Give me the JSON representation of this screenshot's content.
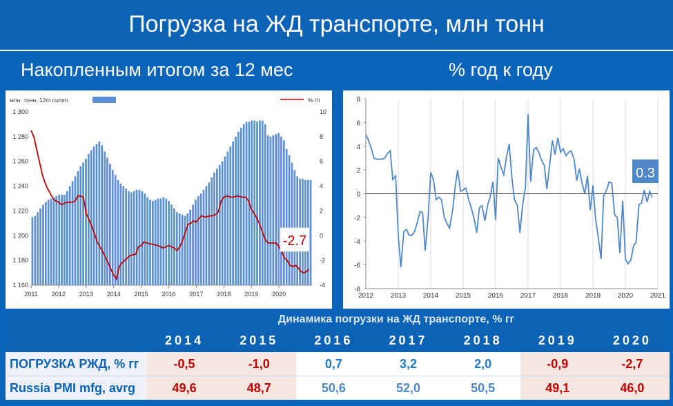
{
  "page": {
    "title": "Погрузка на ЖД транспорте, млн тонн",
    "subtitle_left": "Накопленным итогом за 12 мес",
    "subtitle_right": "% год к году"
  },
  "chart_data": [
    {
      "type": "bar",
      "legend_left": "млн. тонн, 12m cumm",
      "legend_right": "% г/г",
      "bar_color": "#5b8fd6",
      "line_color": "#c00000",
      "x_ticks": [
        "2011",
        "2012",
        "2013",
        "2014",
        "2015",
        "2016",
        "2017",
        "2018",
        "2019",
        "2020"
      ],
      "y_left_ticks": [
        "1 160",
        "1 180",
        "1 200",
        "1 220",
        "1 240",
        "1 260",
        "1 280",
        "1 300"
      ],
      "y_right_ticks": [
        "-4",
        "-2",
        "0",
        "2",
        "4",
        "6",
        "8",
        "10"
      ],
      "ylim_left": [
        1160,
        1300
      ],
      "ylim_right": [
        -4,
        10
      ],
      "annotation": "-2.7",
      "bars_values": [
        1215,
        1216,
        1219,
        1222,
        1225,
        1227,
        1229,
        1230,
        1231,
        1232,
        1233,
        1233,
        1233,
        1236,
        1240,
        1244,
        1248,
        1252,
        1256,
        1259,
        1262,
        1266,
        1269,
        1272,
        1274,
        1276,
        1273,
        1268,
        1263,
        1258,
        1253,
        1249,
        1245,
        1242,
        1240,
        1238,
        1236,
        1235,
        1236,
        1237,
        1237,
        1236,
        1234,
        1231,
        1229,
        1228,
        1229,
        1230,
        1230,
        1231,
        1230,
        1228,
        1225,
        1222,
        1219,
        1218,
        1217,
        1216,
        1218,
        1221,
        1225,
        1229,
        1232,
        1234,
        1237,
        1240,
        1243,
        1247,
        1251,
        1254,
        1257,
        1260,
        1264,
        1268,
        1272,
        1276,
        1280,
        1284,
        1287,
        1290,
        1292,
        1292,
        1293,
        1293,
        1292,
        1293,
        1293,
        1290,
        1281,
        1280,
        1281,
        1282,
        1283,
        1280,
        1277,
        1270,
        1265,
        1259,
        1253,
        1248,
        1246,
        1246,
        1245,
        1245,
        1245
      ],
      "line_points": [
        [
          2011.0,
          8.5
        ],
        [
          2011.1,
          8.0
        ],
        [
          2011.2,
          7.0
        ],
        [
          2011.3,
          6.0
        ],
        [
          2011.4,
          5.0
        ],
        [
          2011.5,
          4.3
        ],
        [
          2011.6,
          3.8
        ],
        [
          2011.7,
          3.4
        ],
        [
          2011.8,
          3.0
        ],
        [
          2011.9,
          2.8
        ],
        [
          2012.0,
          2.7
        ],
        [
          2012.1,
          2.5
        ],
        [
          2012.2,
          2.6
        ],
        [
          2012.3,
          2.7
        ],
        [
          2012.5,
          2.7
        ],
        [
          2012.6,
          2.8
        ],
        [
          2012.7,
          3.2
        ],
        [
          2012.8,
          3.2
        ],
        [
          2012.9,
          3.1
        ],
        [
          2013.0,
          1.8
        ],
        [
          2013.2,
          0.8
        ],
        [
          2013.4,
          -0.5
        ],
        [
          2013.6,
          -1.3
        ],
        [
          2013.8,
          -2.2
        ],
        [
          2014.0,
          -3.2
        ],
        [
          2014.1,
          -3.5
        ],
        [
          2014.2,
          -2.5
        ],
        [
          2014.3,
          -2.2
        ],
        [
          2014.4,
          -2.0
        ],
        [
          2014.6,
          -1.6
        ],
        [
          2014.8,
          -1.5
        ],
        [
          2014.9,
          -0.9
        ],
        [
          2015.0,
          -0.8
        ],
        [
          2015.1,
          -0.5
        ],
        [
          2015.2,
          -0.6
        ],
        [
          2015.4,
          -0.7
        ],
        [
          2015.6,
          -0.8
        ],
        [
          2015.8,
          -1.0
        ],
        [
          2015.9,
          -0.9
        ],
        [
          2016.0,
          -0.8
        ],
        [
          2016.1,
          -0.9
        ],
        [
          2016.2,
          -1.0
        ],
        [
          2016.3,
          -1.2
        ],
        [
          2016.4,
          -0.9
        ],
        [
          2016.5,
          -0.4
        ],
        [
          2016.6,
          0.3
        ],
        [
          2016.7,
          0.9
        ],
        [
          2016.8,
          1.0
        ],
        [
          2016.9,
          1.2
        ],
        [
          2017.0,
          1.1
        ],
        [
          2017.1,
          1.4
        ],
        [
          2017.2,
          1.6
        ],
        [
          2017.3,
          1.5
        ],
        [
          2017.5,
          1.6
        ],
        [
          2017.6,
          1.6
        ],
        [
          2017.7,
          1.7
        ],
        [
          2017.8,
          1.9
        ],
        [
          2017.9,
          2.8
        ],
        [
          2018.0,
          3.1
        ],
        [
          2018.1,
          3.2
        ],
        [
          2018.3,
          3.1
        ],
        [
          2018.5,
          3.2
        ],
        [
          2018.7,
          3.1
        ],
        [
          2018.8,
          3.1
        ],
        [
          2018.9,
          2.8
        ],
        [
          2019.0,
          2.1
        ],
        [
          2019.1,
          1.8
        ],
        [
          2019.2,
          1.4
        ],
        [
          2019.3,
          0.9
        ],
        [
          2019.4,
          0.3
        ],
        [
          2019.5,
          -0.3
        ],
        [
          2019.6,
          -0.6
        ],
        [
          2019.8,
          -0.6
        ],
        [
          2019.9,
          -0.6
        ],
        [
          2020.0,
          -0.9
        ],
        [
          2020.1,
          -1.3
        ],
        [
          2020.2,
          -1.8
        ],
        [
          2020.3,
          -2.0
        ],
        [
          2020.4,
          -2.4
        ],
        [
          2020.5,
          -2.5
        ],
        [
          2020.6,
          -2.4
        ],
        [
          2020.7,
          -2.6
        ],
        [
          2020.8,
          -2.9
        ],
        [
          2020.9,
          -3.0
        ],
        [
          2021.0,
          -2.9
        ],
        [
          2021.1,
          -2.7
        ]
      ]
    },
    {
      "type": "line",
      "line_color": "#4f87c8",
      "x_ticks": [
        "2012",
        "2013",
        "2014",
        "2015",
        "2016",
        "2017",
        "2018",
        "2019",
        "2020",
        "2021"
      ],
      "y_ticks": [
        "-8",
        "-6",
        "-4",
        "-2",
        "0",
        "2",
        "4",
        "6",
        "8"
      ],
      "ylim": [
        -8,
        8
      ],
      "annotation": "0.3",
      "points": [
        [
          2012.0,
          5.0
        ],
        [
          2012.08,
          4.5
        ],
        [
          2012.17,
          3.8
        ],
        [
          2012.25,
          3.0
        ],
        [
          2012.33,
          2.9
        ],
        [
          2012.42,
          2.9
        ],
        [
          2012.5,
          2.9
        ],
        [
          2012.58,
          3.0
        ],
        [
          2012.67,
          3.4
        ],
        [
          2012.75,
          3.6
        ],
        [
          2012.83,
          1.2
        ],
        [
          2012.92,
          1.5
        ],
        [
          2013.0,
          -3.5
        ],
        [
          2013.08,
          -6.2
        ],
        [
          2013.17,
          -3.2
        ],
        [
          2013.25,
          -3.0
        ],
        [
          2013.33,
          -3.5
        ],
        [
          2013.42,
          -3.5
        ],
        [
          2013.5,
          -3.2
        ],
        [
          2013.58,
          -2.5
        ],
        [
          2013.67,
          -1.5
        ],
        [
          2013.75,
          -1.6
        ],
        [
          2013.83,
          -4.8
        ],
        [
          2013.92,
          -2.0
        ],
        [
          2014.0,
          1.8
        ],
        [
          2014.08,
          1.2
        ],
        [
          2014.17,
          -0.5
        ],
        [
          2014.25,
          -0.3
        ],
        [
          2014.33,
          -0.5
        ],
        [
          2014.42,
          -2.0
        ],
        [
          2014.5,
          -2.5
        ],
        [
          2014.58,
          -2.9
        ],
        [
          2014.67,
          -1.5
        ],
        [
          2014.75,
          0.5
        ],
        [
          2014.83,
          2.0
        ],
        [
          2014.92,
          0.2
        ],
        [
          2015.0,
          0.3
        ],
        [
          2015.08,
          0.5
        ],
        [
          2015.17,
          -0.5
        ],
        [
          2015.25,
          -1.2
        ],
        [
          2015.33,
          -2.0
        ],
        [
          2015.42,
          -3.3
        ],
        [
          2015.5,
          -1.2
        ],
        [
          2015.58,
          -1.0
        ],
        [
          2015.67,
          -2.3
        ],
        [
          2015.75,
          -1.0
        ],
        [
          2015.83,
          -0.3
        ],
        [
          2015.92,
          1.0
        ],
        [
          2016.0,
          -2.2
        ],
        [
          2016.08,
          3.0
        ],
        [
          2016.17,
          2.2
        ],
        [
          2016.25,
          1.6
        ],
        [
          2016.33,
          3.0
        ],
        [
          2016.42,
          4.2
        ],
        [
          2016.5,
          1.4
        ],
        [
          2016.58,
          -0.5
        ],
        [
          2016.67,
          -1.0
        ],
        [
          2016.75,
          -3.3
        ],
        [
          2016.83,
          -1.0
        ],
        [
          2016.92,
          0.5
        ],
        [
          2017.0,
          6.7
        ],
        [
          2017.08,
          1.0
        ],
        [
          2017.17,
          3.7
        ],
        [
          2017.25,
          3.9
        ],
        [
          2017.33,
          3.5
        ],
        [
          2017.42,
          2.8
        ],
        [
          2017.5,
          2.4
        ],
        [
          2017.58,
          0.4
        ],
        [
          2017.67,
          2.5
        ],
        [
          2017.75,
          4.5
        ],
        [
          2017.83,
          3.3
        ],
        [
          2017.92,
          4.7
        ],
        [
          2018.0,
          3.5
        ],
        [
          2018.08,
          3.8
        ],
        [
          2018.17,
          3.2
        ],
        [
          2018.25,
          3.5
        ],
        [
          2018.33,
          3.6
        ],
        [
          2018.42,
          2.9
        ],
        [
          2018.5,
          1.1
        ],
        [
          2018.58,
          2.1
        ],
        [
          2018.67,
          0.8
        ],
        [
          2018.75,
          0.0
        ],
        [
          2018.83,
          1.5
        ],
        [
          2018.92,
          -1.4
        ],
        [
          2019.0,
          0.7
        ],
        [
          2019.08,
          -2.1
        ],
        [
          2019.17,
          -3.8
        ],
        [
          2019.25,
          -5.5
        ],
        [
          2019.33,
          -0.2
        ],
        [
          2019.42,
          0.3
        ],
        [
          2019.5,
          1.0
        ],
        [
          2019.58,
          0.9
        ],
        [
          2019.67,
          -1.8
        ],
        [
          2019.75,
          -2.0
        ],
        [
          2019.83,
          -5.0
        ],
        [
          2019.92,
          -0.6
        ],
        [
          2020.0,
          -5.5
        ],
        [
          2020.08,
          -5.9
        ],
        [
          2020.17,
          -5.6
        ],
        [
          2020.25,
          -4.4
        ],
        [
          2020.33,
          -4.1
        ],
        [
          2020.42,
          -0.9
        ],
        [
          2020.5,
          -0.8
        ],
        [
          2020.58,
          0.3
        ],
        [
          2020.67,
          -0.7
        ],
        [
          2020.75,
          0.2
        ],
        [
          2020.83,
          -0.3
        ]
      ]
    }
  ],
  "table": {
    "caption": "Динамика погрузки на ЖД транспорте, % гг",
    "years": [
      "2014",
      "2015",
      "2016",
      "2017",
      "2018",
      "2019",
      "2020"
    ],
    "rows": [
      {
        "label": "ПОГРУЗКА РЖД, % гг",
        "values": [
          "-0,5",
          "-1,0",
          "0,7",
          "3,2",
          "2,0",
          "-0,9",
          "-2,7"
        ],
        "negative": [
          true,
          true,
          false,
          false,
          false,
          true,
          true
        ]
      },
      {
        "label": "Russia PMI mfg, avrg",
        "values": [
          "49,6",
          "48,7",
          "50,6",
          "52,0",
          "50,5",
          "49,1",
          "46,0"
        ],
        "negative": [
          true,
          true,
          false,
          false,
          false,
          true,
          true
        ]
      }
    ]
  }
}
